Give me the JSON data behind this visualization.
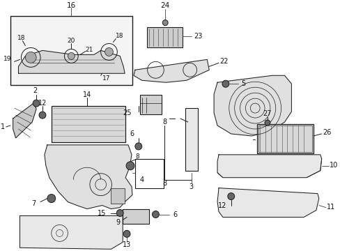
{
  "bg_color": "#ffffff",
  "lc": "#1a1a1a",
  "tc": "#111111",
  "fig_width": 4.89,
  "fig_height": 3.6,
  "dpi": 100,
  "lw": 0.7,
  "fs": 7.0
}
